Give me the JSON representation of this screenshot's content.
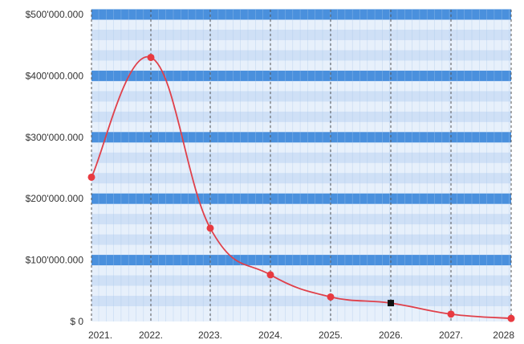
{
  "chart_data": {
    "type": "line",
    "title": "",
    "xlabel": "",
    "ylabel": "",
    "x": [
      "2021.",
      "2022.",
      "2023.",
      "2024.",
      "2025.",
      "2026.",
      "2027.",
      "2028"
    ],
    "ylim": [
      0,
      500000
    ],
    "y_ticks": [
      {
        "value": 0,
        "label": "$ 0"
      },
      {
        "value": 100000,
        "label": "$100'000.000"
      },
      {
        "value": 200000,
        "label": "$200'000.000"
      },
      {
        "value": 300000,
        "label": "$300'000.000"
      },
      {
        "value": 400000,
        "label": "$400'000.000"
      },
      {
        "value": 500000,
        "label": "$500'000.000"
      }
    ],
    "series": [
      {
        "values": [
          235000,
          430000,
          152000,
          76000,
          40000,
          30000,
          12000,
          5000
        ],
        "color": "#e0404a",
        "marker_color": "#e83a40",
        "highlight_index": 5,
        "highlight_color": "#111111"
      }
    ],
    "grid": true,
    "legend": "none",
    "colors": {
      "plot_background": "#e7f0fb",
      "band_strong": "#4a90dd",
      "band_light": "#cfe0f6",
      "vertical_grid": "#555555",
      "minor_grid": "#a9c6ea"
    }
  }
}
